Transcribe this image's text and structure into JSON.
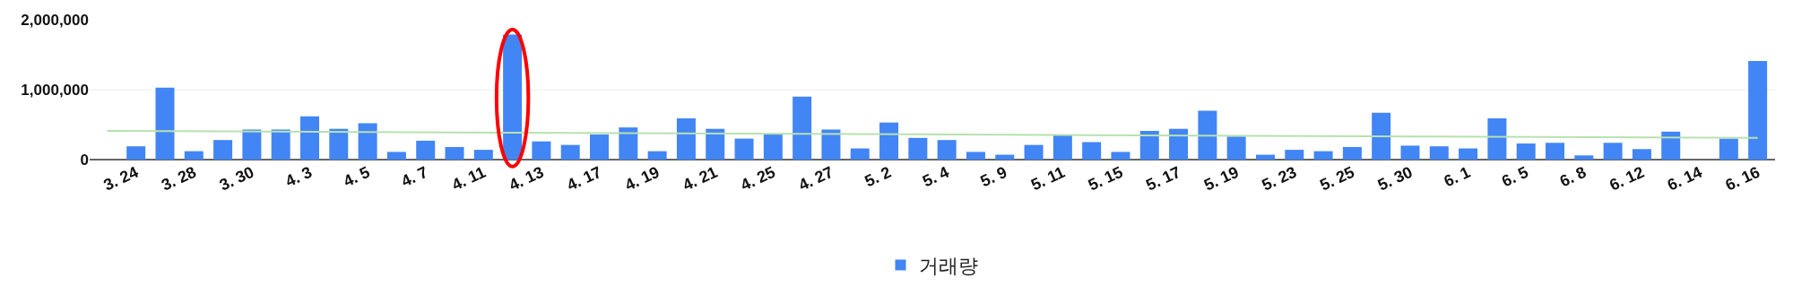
{
  "chart_data": {
    "type": "bar",
    "categories": [
      null,
      "3. 24",
      null,
      "3. 28",
      null,
      "3. 30",
      null,
      "4. 3",
      null,
      "4. 5",
      null,
      "4. 7",
      null,
      "4. 11",
      null,
      "4. 13",
      null,
      "4. 17",
      null,
      "4. 19",
      null,
      "4. 21",
      null,
      "4. 25",
      null,
      "4. 27",
      null,
      "5. 2",
      null,
      "5. 4",
      null,
      "5. 9",
      null,
      "5. 11",
      null,
      "5. 15",
      null,
      "5. 17",
      null,
      "5. 19",
      null,
      "5. 23",
      null,
      "5. 25",
      null,
      "5. 30",
      null,
      "6. 1",
      null,
      "6. 5",
      null,
      "6. 8",
      null,
      "6. 12",
      null,
      "6. 14",
      null,
      "6. 16"
    ],
    "series": [
      {
        "name": "거래량",
        "color": "#4285f4",
        "values": [
          0,
          190000,
          1030000,
          120000,
          280000,
          430000,
          430000,
          620000,
          440000,
          520000,
          110000,
          270000,
          180000,
          140000,
          1790000,
          260000,
          210000,
          360000,
          460000,
          120000,
          590000,
          440000,
          300000,
          370000,
          900000,
          430000,
          160000,
          530000,
          310000,
          280000,
          110000,
          70000,
          210000,
          350000,
          250000,
          110000,
          410000,
          440000,
          700000,
          330000,
          70000,
          140000,
          120000,
          180000,
          670000,
          200000,
          190000,
          160000,
          590000,
          230000,
          240000,
          60000,
          240000,
          150000,
          400000,
          0,
          300000,
          1410000
        ]
      },
      {
        "type": "line",
        "color": "#b7e1b0",
        "values": [
          410000,
          null,
          null,
          null,
          null,
          null,
          null,
          null,
          null,
          null,
          null,
          null,
          null,
          null,
          null,
          null,
          null,
          null,
          null,
          null,
          null,
          null,
          null,
          null,
          null,
          null,
          null,
          null,
          null,
          null,
          null,
          null,
          null,
          null,
          null,
          null,
          null,
          null,
          null,
          null,
          null,
          null,
          null,
          null,
          null,
          null,
          null,
          null,
          null,
          null,
          null,
          null,
          null,
          null,
          null,
          null,
          null,
          310000
        ]
      }
    ],
    "ylim": [
      0,
      2000000
    ],
    "yticks": [
      0,
      {
        "value": 1000000,
        "label": "1,000,000"
      },
      {
        "value": 2000000,
        "label": "2,000,000"
      }
    ],
    "grid": "y",
    "legend": "bottom"
  }
}
